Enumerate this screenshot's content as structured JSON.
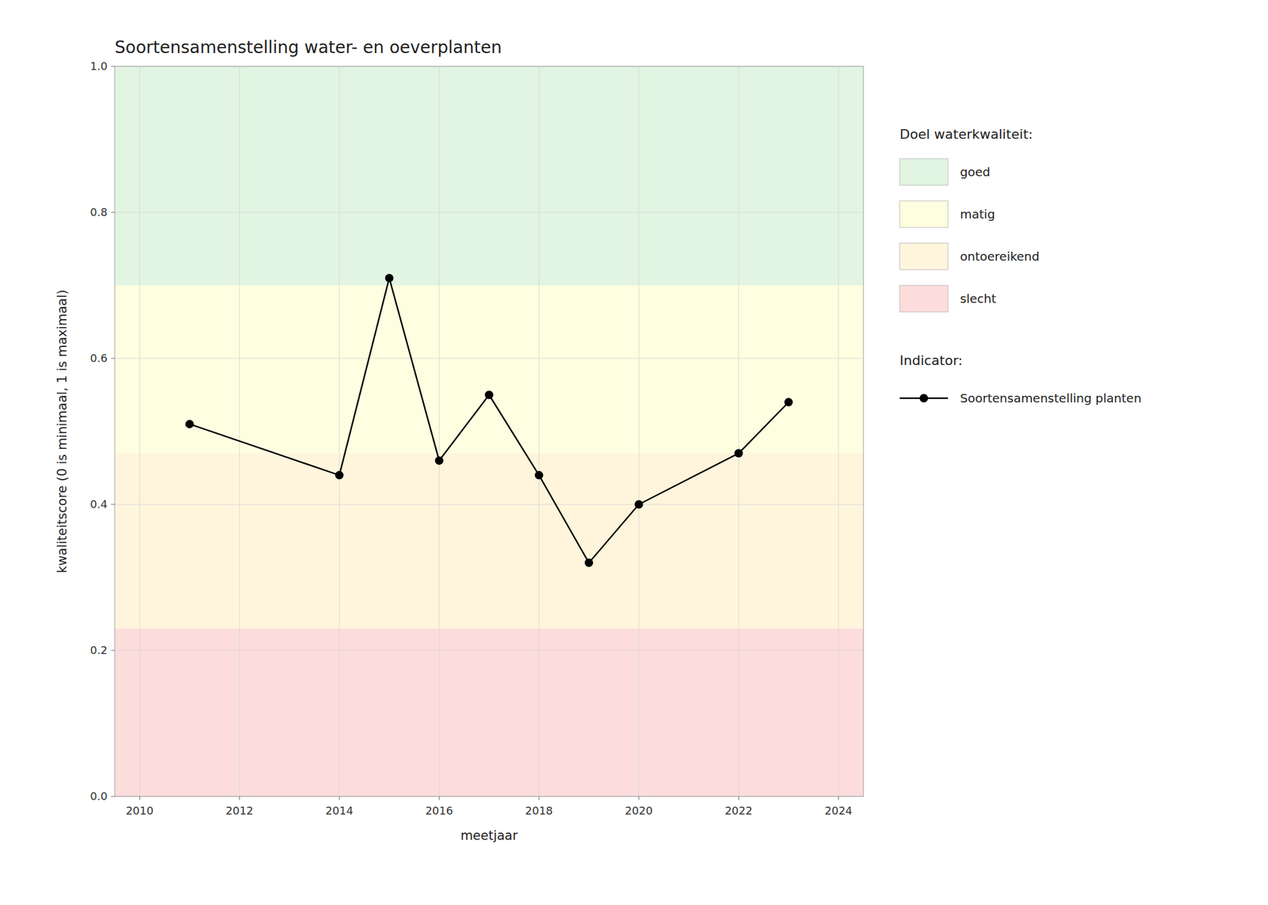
{
  "chart_data": {
    "type": "line",
    "title": "Soortensamenstelling water- en oeverplanten",
    "x_label": "meetjaar",
    "y_label": "kwaliteitscore (0 is minimaal, 1 is maximaal)",
    "x": [
      2011,
      2014,
      2015,
      2016,
      2017,
      2018,
      2019,
      2020,
      2022,
      2023
    ],
    "series": [
      {
        "name": "Soortensamenstelling planten",
        "color": "#000000",
        "marker": "circle",
        "line_style": "solid",
        "values": [
          0.51,
          0.44,
          0.71,
          0.46,
          0.55,
          0.44,
          0.32,
          0.4,
          0.47,
          0.54
        ]
      }
    ],
    "xlim": [
      2009.5,
      2024.5
    ],
    "ylim": [
      0.0,
      1.0
    ],
    "xticks": [
      2010,
      2012,
      2014,
      2016,
      2018,
      2020,
      2022,
      2024
    ],
    "yticks": [
      {
        "value": 0,
        "label": "0.0"
      },
      0.2,
      0.4,
      0.6,
      0.8,
      {
        "value": 1,
        "label": "1.0"
      }
    ],
    "grid": true,
    "zones_title": "Doel waterkwaliteit:",
    "series_title": "Indicator:",
    "zones": [
      {
        "name": "goed",
        "color": "#E2F5E2",
        "range": [
          0.7,
          1.0
        ]
      },
      {
        "name": "matig",
        "color": "#FEFEE0",
        "range": [
          0.47,
          0.7
        ]
      },
      {
        "name": "ontoereikend",
        "color": "#FEF5DC",
        "range": [
          0.23,
          0.47
        ]
      },
      {
        "name": "slecht",
        "color": "#FDDCDC",
        "range": [
          0.0,
          0.23
        ]
      }
    ]
  }
}
